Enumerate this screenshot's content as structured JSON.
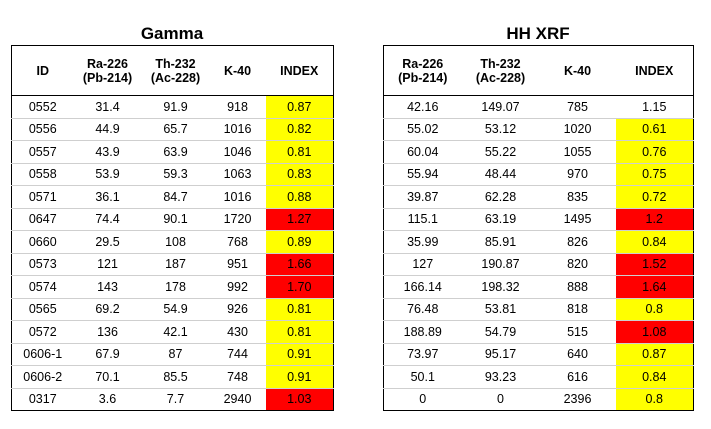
{
  "gamma": {
    "title": "Gamma",
    "headers": {
      "id": "ID",
      "ra_line1": "Ra-226",
      "ra_line2": "(Pb-214)",
      "th_line1": "Th-232",
      "th_line2": "(Ac-228)",
      "k": "K-40",
      "index": "INDEX"
    },
    "rows": [
      {
        "id": "0552",
        "ra": "31.4",
        "th": "91.9",
        "k": "918",
        "index": "0.87",
        "color": "yellow"
      },
      {
        "id": "0556",
        "ra": "44.9",
        "th": "65.7",
        "k": "1016",
        "index": "0.82",
        "color": "yellow"
      },
      {
        "id": "0557",
        "ra": "43.9",
        "th": "63.9",
        "k": "1046",
        "index": "0.81",
        "color": "yellow"
      },
      {
        "id": "0558",
        "ra": "53.9",
        "th": "59.3",
        "k": "1063",
        "index": "0.83",
        "color": "yellow"
      },
      {
        "id": "0571",
        "ra": "36.1",
        "th": "84.7",
        "k": "1016",
        "index": "0.88",
        "color": "yellow"
      },
      {
        "id": "0647",
        "ra": "74.4",
        "th": "90.1",
        "k": "1720",
        "index": "1.27",
        "color": "red"
      },
      {
        "id": "0660",
        "ra": "29.5",
        "th": "108",
        "k": "768",
        "index": "0.89",
        "color": "yellow"
      },
      {
        "id": "0573",
        "ra": "121",
        "th": "187",
        "k": "951",
        "index": "1.66",
        "color": "red"
      },
      {
        "id": "0574",
        "ra": "143",
        "th": "178",
        "k": "992",
        "index": "1.70",
        "color": "red"
      },
      {
        "id": "0565",
        "ra": "69.2",
        "th": "54.9",
        "k": "926",
        "index": "0.81",
        "color": "yellow"
      },
      {
        "id": "0572",
        "ra": "136",
        "th": "42.1",
        "k": "430",
        "index": "0.81",
        "color": "yellow"
      },
      {
        "id": "0606-1",
        "ra": "67.9",
        "th": "87",
        "k": "744",
        "index": "0.91",
        "color": "yellow"
      },
      {
        "id": "0606-2",
        "ra": "70.1",
        "th": "85.5",
        "k": "748",
        "index": "0.91",
        "color": "yellow"
      },
      {
        "id": "0317",
        "ra": "3.6",
        "th": "7.7",
        "k": "2940",
        "index": "1.03",
        "color": "red"
      }
    ]
  },
  "xrf": {
    "title": "HH XRF",
    "headers": {
      "ra_line1": "Ra-226",
      "ra_line2": "(Pb-214)",
      "th_line1": "Th-232",
      "th_line2": "(Ac-228)",
      "k": "K-40",
      "index": "INDEX"
    },
    "rows": [
      {
        "ra": "42.16",
        "th": "149.07",
        "k": "785",
        "index": "1.15",
        "color": "none"
      },
      {
        "ra": "55.02",
        "th": "53.12",
        "k": "1020",
        "index": "0.61",
        "color": "yellow"
      },
      {
        "ra": "60.04",
        "th": "55.22",
        "k": "1055",
        "index": "0.76",
        "color": "yellow"
      },
      {
        "ra": "55.94",
        "th": "48.44",
        "k": "970",
        "index": "0.75",
        "color": "yellow"
      },
      {
        "ra": "39.87",
        "th": "62.28",
        "k": "835",
        "index": "0.72",
        "color": "yellow"
      },
      {
        "ra": "115.1",
        "th": "63.19",
        "k": "1495",
        "index": "1.2",
        "color": "red"
      },
      {
        "ra": "35.99",
        "th": "85.91",
        "k": "826",
        "index": "0.84",
        "color": "yellow"
      },
      {
        "ra": "127",
        "th": "190.87",
        "k": "820",
        "index": "1.52",
        "color": "red"
      },
      {
        "ra": "166.14",
        "th": "198.32",
        "k": "888",
        "index": "1.64",
        "color": "red"
      },
      {
        "ra": "76.48",
        "th": "53.81",
        "k": "818",
        "index": "0.8",
        "color": "yellow"
      },
      {
        "ra": "188.89",
        "th": "54.79",
        "k": "515",
        "index": "1.08",
        "color": "red"
      },
      {
        "ra": "73.97",
        "th": "95.17",
        "k": "640",
        "index": "0.87",
        "color": "yellow"
      },
      {
        "ra": "50.1",
        "th": "93.23",
        "k": "616",
        "index": "0.84",
        "color": "yellow"
      },
      {
        "ra": "0",
        "th": "0",
        "k": "2396",
        "index": "0.8",
        "color": "yellow"
      }
    ]
  },
  "colors": {
    "yellow": "#ffff00",
    "red": "#ff0000"
  }
}
